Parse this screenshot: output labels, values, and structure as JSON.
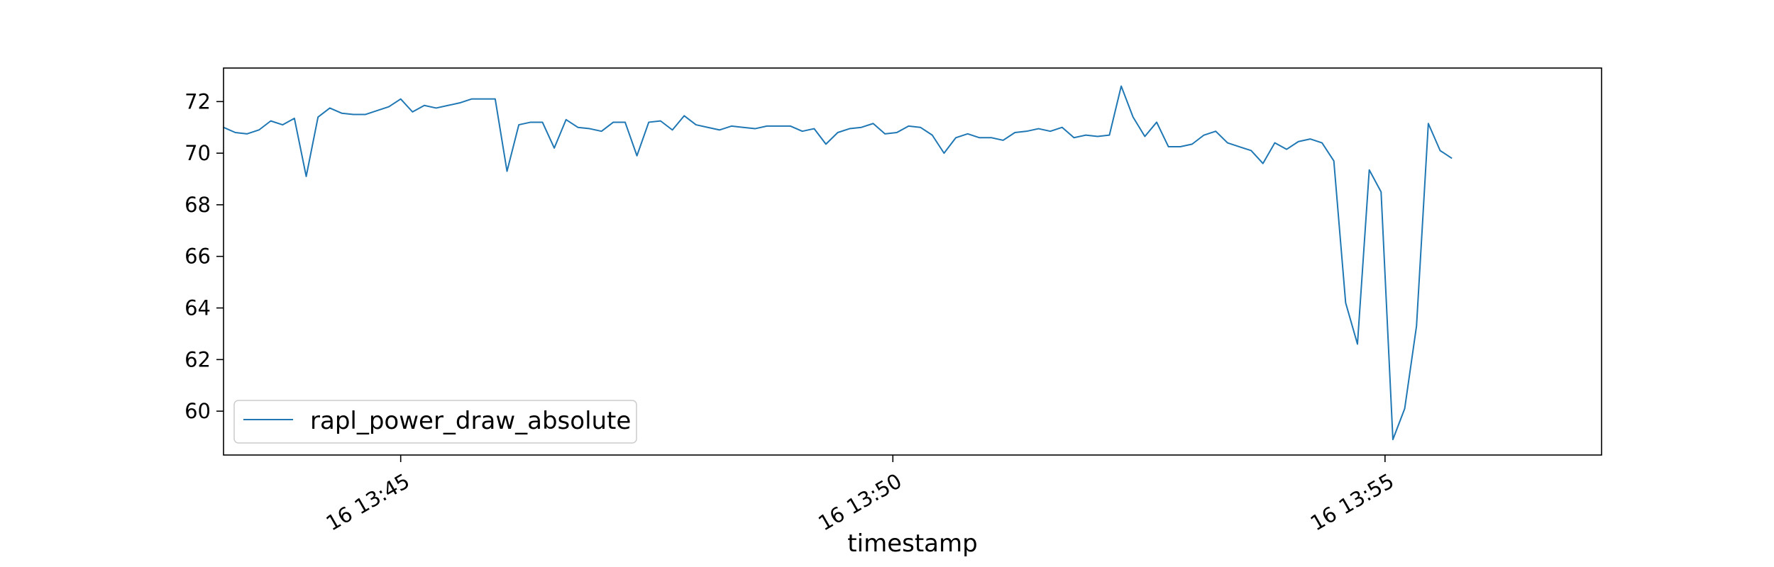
{
  "chart_data": {
    "type": "line",
    "title": "",
    "xlabel": "timestamp",
    "ylabel": "",
    "x_start": "2024-01-16 13:43:12",
    "x_interval_seconds": 7.2,
    "xlim": [
      "2024-01-16 13:43:12",
      "2024-01-16 13:57:12"
    ],
    "ylim": [
      58.3,
      73.3
    ],
    "x_ticks": [
      {
        "value": "2024-01-16 13:45:00",
        "label": "16 13:45"
      },
      {
        "value": "2024-01-16 13:50:00",
        "label": "16 13:50"
      },
      {
        "value": "2024-01-16 13:55:00",
        "label": "16 13:55"
      }
    ],
    "y_ticks": [
      60,
      62,
      64,
      66,
      68,
      70,
      72
    ],
    "grid": false,
    "legend": {
      "position": "bottom-left"
    },
    "series": [
      {
        "name": "rapl_power_draw_absolute",
        "color": "#1f77b4",
        "values": [
          71.0,
          70.8,
          70.75,
          70.9,
          71.25,
          71.1,
          71.35,
          69.1,
          71.4,
          71.75,
          71.55,
          71.5,
          71.5,
          71.65,
          71.8,
          72.1,
          71.6,
          71.85,
          71.75,
          71.85,
          71.95,
          72.1,
          72.1,
          72.1,
          69.3,
          71.1,
          71.2,
          71.2,
          70.2,
          71.3,
          71.0,
          70.95,
          70.85,
          71.2,
          71.2,
          69.9,
          71.2,
          71.25,
          70.9,
          71.45,
          71.1,
          71.0,
          70.9,
          71.05,
          71.0,
          70.95,
          71.05,
          71.05,
          71.05,
          70.85,
          70.95,
          70.35,
          70.8,
          70.95,
          71.0,
          71.15,
          70.75,
          70.8,
          71.05,
          71.0,
          70.7,
          70.0,
          70.6,
          70.75,
          70.6,
          70.6,
          70.5,
          70.8,
          70.85,
          70.95,
          70.85,
          71.0,
          70.6,
          70.7,
          70.65,
          70.7,
          72.6,
          71.4,
          70.65,
          71.2,
          70.25,
          70.25,
          70.35,
          70.7,
          70.85,
          70.4,
          70.25,
          70.1,
          69.6,
          70.4,
          70.15,
          70.45,
          70.55,
          70.4,
          69.7,
          64.2,
          62.6,
          69.35,
          68.5,
          58.9,
          60.1,
          63.3,
          71.15,
          70.1,
          69.8
        ]
      }
    ]
  }
}
